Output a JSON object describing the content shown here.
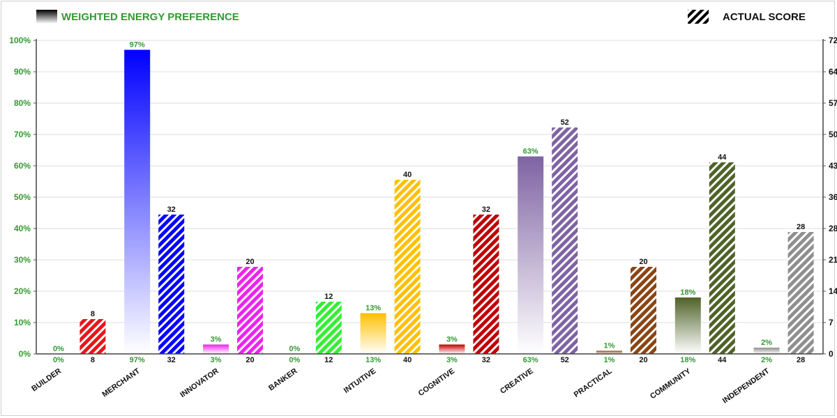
{
  "chart_data": {
    "type": "bar",
    "categories": [
      "BUILDER",
      "MERCHANT",
      "INNOVATOR",
      "BANKER",
      "INTUITIVE",
      "COGNITIVE",
      "CREATIVE",
      "PRACTICAL",
      "COMMUNITY",
      "INDEPENDENT"
    ],
    "series": [
      {
        "name": "WEIGHTED ENERGY PREFERENCE",
        "axis": "left",
        "values": [
          0,
          97,
          3,
          0,
          13,
          3,
          63,
          1,
          18,
          2
        ],
        "labels": [
          "0%",
          "97%",
          "3%",
          "0%",
          "13%",
          "3%",
          "63%",
          "1%",
          "18%",
          "2%"
        ]
      },
      {
        "name": "ACTUAL SCORE",
        "axis": "right",
        "values": [
          8,
          32,
          20,
          12,
          40,
          32,
          52,
          20,
          44,
          28
        ],
        "labels": [
          "8",
          "32",
          "20",
          "12",
          "40",
          "32",
          "52",
          "20",
          "44",
          "28"
        ]
      }
    ],
    "category_colors": [
      "#e8151b",
      "#0000ff",
      "#ee22ee",
      "#33ee33",
      "#ffc000",
      "#c00000",
      "#7f63a3",
      "#8b4513",
      "#4f6228",
      "#8f8f8f"
    ],
    "left_axis": {
      "ticks": [
        "0%",
        "10%",
        "20%",
        "30%",
        "40%",
        "50%",
        "60%",
        "70%",
        "80%",
        "90%",
        "100%"
      ],
      "ylim": [
        0,
        100
      ]
    },
    "right_axis": {
      "ticks": [
        "0",
        "7",
        "14",
        "21",
        "28",
        "36",
        "43",
        "50",
        "57",
        "64",
        "72"
      ],
      "ylim": [
        0,
        72
      ]
    },
    "grid": true,
    "legend_position": "top",
    "label_color_weighted": "#339933",
    "label_color_score": "#111111"
  }
}
